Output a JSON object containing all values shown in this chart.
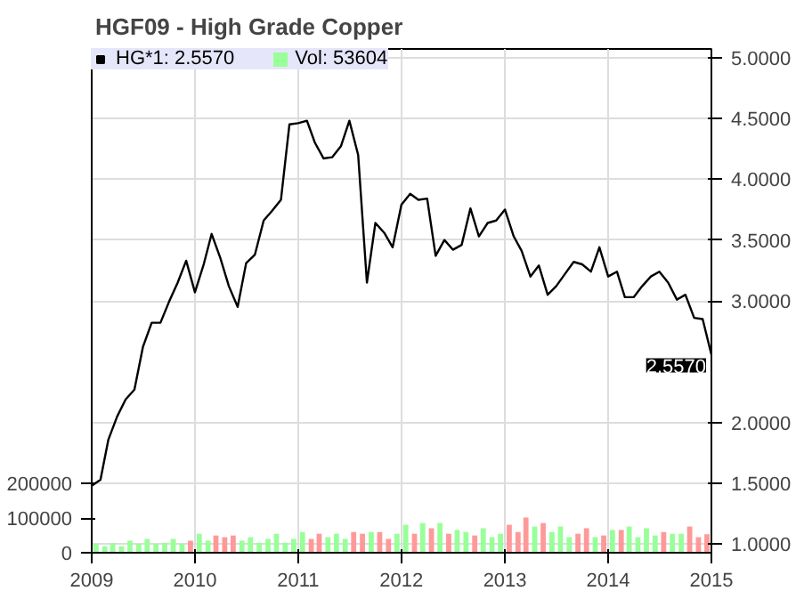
{
  "chart_data": {
    "type": "line",
    "title": "HGF09 - High Grade Copper",
    "x": [
      "2009-01",
      "2009-02",
      "2009-03",
      "2009-04",
      "2009-05",
      "2009-06",
      "2009-07",
      "2009-08",
      "2009-09",
      "2009-10",
      "2009-11",
      "2009-12",
      "2010-01",
      "2010-02",
      "2010-03",
      "2010-04",
      "2010-05",
      "2010-06",
      "2010-07",
      "2010-08",
      "2010-09",
      "2010-10",
      "2010-11",
      "2010-12",
      "2011-01",
      "2011-02",
      "2011-03",
      "2011-04",
      "2011-05",
      "2011-06",
      "2011-07",
      "2011-08",
      "2011-09",
      "2011-10",
      "2011-11",
      "2011-12",
      "2012-01",
      "2012-02",
      "2012-03",
      "2012-04",
      "2012-05",
      "2012-06",
      "2012-07",
      "2012-08",
      "2012-09",
      "2012-10",
      "2012-11",
      "2012-12",
      "2013-01",
      "2013-02",
      "2013-03",
      "2013-04",
      "2013-05",
      "2013-06",
      "2013-07",
      "2013-08",
      "2013-09",
      "2013-10",
      "2013-11",
      "2013-12",
      "2014-01",
      "2014-02",
      "2014-03",
      "2014-04",
      "2014-05",
      "2014-06",
      "2014-07",
      "2014-08",
      "2014-09",
      "2014-10",
      "2014-11",
      "2014-12",
      "2015-01"
    ],
    "series": [
      {
        "name": "HG*1: 2.5570",
        "color": "#000000",
        "values": [
          1.48,
          1.53,
          1.86,
          2.05,
          2.19,
          2.27,
          2.62,
          2.82,
          2.82,
          2.99,
          3.15,
          3.33,
          3.07,
          3.3,
          3.55,
          3.35,
          3.12,
          2.95,
          3.31,
          3.38,
          3.66,
          3.74,
          3.83,
          4.45,
          4.46,
          4.48,
          4.3,
          4.17,
          4.18,
          4.27,
          4.48,
          4.2,
          3.15,
          3.64,
          3.56,
          3.44,
          3.79,
          3.88,
          3.83,
          3.84,
          3.37,
          3.5,
          3.42,
          3.46,
          3.76,
          3.53,
          3.64,
          3.66,
          3.75,
          3.53,
          3.41,
          3.2,
          3.29,
          3.05,
          3.12,
          3.22,
          3.32,
          3.3,
          3.24,
          3.44,
          3.2,
          3.24,
          3.03,
          3.03,
          3.12,
          3.2,
          3.24,
          3.15,
          3.01,
          3.05,
          2.86,
          2.85,
          2.557
        ]
      },
      {
        "name": "Vol: 53604",
        "type": "bar",
        "axis": "y2",
        "x": [
          "2009-01",
          "2009-02",
          "2009-03",
          "2009-04",
          "2009-05",
          "2009-06",
          "2009-07",
          "2009-08",
          "2009-09",
          "2009-10",
          "2009-11",
          "2009-12",
          "2010-01",
          "2010-02",
          "2010-03",
          "2010-04",
          "2010-05",
          "2010-06",
          "2010-07",
          "2010-08",
          "2010-09",
          "2010-10",
          "2010-11",
          "2010-12",
          "2011-01",
          "2011-02",
          "2011-03",
          "2011-04",
          "2011-05",
          "2011-06",
          "2011-07",
          "2011-08",
          "2011-09",
          "2011-10",
          "2011-11",
          "2011-12",
          "2012-01",
          "2012-02",
          "2012-03",
          "2012-04",
          "2012-05",
          "2012-06",
          "2012-07",
          "2012-08",
          "2012-09",
          "2012-10",
          "2012-11",
          "2012-12",
          "2013-01",
          "2013-02",
          "2013-03",
          "2013-04",
          "2013-05",
          "2013-06",
          "2013-07",
          "2013-08",
          "2013-09",
          "2013-10",
          "2013-11",
          "2013-12",
          "2014-01",
          "2014-02",
          "2014-03",
          "2014-04",
          "2014-05",
          "2014-06",
          "2014-07",
          "2014-08",
          "2014-09",
          "2014-10",
          "2014-11",
          "2014-12"
        ],
        "values": [
          26000,
          19000,
          28000,
          19000,
          35000,
          26000,
          40000,
          26000,
          29000,
          40000,
          26000,
          35000,
          55000,
          35000,
          50000,
          45000,
          50000,
          35000,
          45000,
          29000,
          40000,
          55000,
          29000,
          40000,
          60000,
          40000,
          55000,
          45000,
          55000,
          40000,
          60000,
          55000,
          60000,
          60000,
          40000,
          55000,
          81000,
          55000,
          86000,
          71000,
          86000,
          55000,
          66000,
          60000,
          50000,
          71000,
          45000,
          55000,
          81000,
          60000,
          102000,
          76000,
          86000,
          60000,
          76000,
          45000,
          55000,
          71000,
          45000,
          50000,
          66000,
          66000,
          76000,
          45000,
          71000,
          50000,
          60000,
          55000,
          55000,
          76000,
          45000,
          53604
        ],
        "colors": [
          "#99ff99",
          "#99ff99",
          "#99ff99",
          "#99ff99",
          "#99ff99",
          "#99ff99",
          "#99ff99",
          "#99ff99",
          "#99ff99",
          "#99ff99",
          "#99ff99",
          "#ff9999",
          "#99ff99",
          "#99ff99",
          "#ff9999",
          "#ff9999",
          "#ff9999",
          "#99ff99",
          "#99ff99",
          "#99ff99",
          "#99ff99",
          "#99ff99",
          "#99ff99",
          "#99ff99",
          "#99ff99",
          "#ff9999",
          "#ff9999",
          "#99ff99",
          "#99ff99",
          "#99ff99",
          "#ff9999",
          "#ff9999",
          "#99ff99",
          "#ff9999",
          "#ff9999",
          "#99ff99",
          "#99ff99",
          "#ff9999",
          "#99ff99",
          "#ff9999",
          "#99ff99",
          "#ff9999",
          "#99ff99",
          "#99ff99",
          "#ff9999",
          "#99ff99",
          "#99ff99",
          "#99ff99",
          "#ff9999",
          "#ff9999",
          "#ff9999",
          "#99ff99",
          "#ff9999",
          "#99ff99",
          "#99ff99",
          "#99ff99",
          "#ff9999",
          "#ff9999",
          "#99ff99",
          "#ff9999",
          "#99ff99",
          "#ff9999",
          "#99ff99",
          "#99ff99",
          "#99ff99",
          "#99ff99",
          "#ff9999",
          "#99ff99",
          "#99ff99",
          "#ff9999",
          "#ff9999",
          "#ff9999"
        ]
      }
    ],
    "xlim": [
      "2009-01",
      "2015-01"
    ],
    "xticks": [
      "2009",
      "2010",
      "2011",
      "2012",
      "2013",
      "2014",
      "2015"
    ],
    "ylim": [
      0.93,
      5.07
    ],
    "yticks": [
      {
        "value": 1.0,
        "label": "1.0000"
      },
      {
        "value": 1.5,
        "label": "1.5000"
      },
      {
        "value": 2.0,
        "label": "2.0000"
      },
      {
        "value": 3.0,
        "label": "3.0000"
      },
      {
        "value": 3.5,
        "label": "3.5000"
      },
      {
        "value": 4.0,
        "label": "4.0000"
      },
      {
        "value": 4.5,
        "label": "4.5000"
      },
      {
        "value": 5.0,
        "label": "5.0000"
      }
    ],
    "y2lim": [
      0,
      1460000
    ],
    "y2ticks": [
      0,
      100000,
      200000
    ],
    "annotations": [
      {
        "text": "2.5570",
        "x": "2015-01",
        "y": 2.557
      }
    ],
    "grid": true,
    "legend": "top left"
  }
}
